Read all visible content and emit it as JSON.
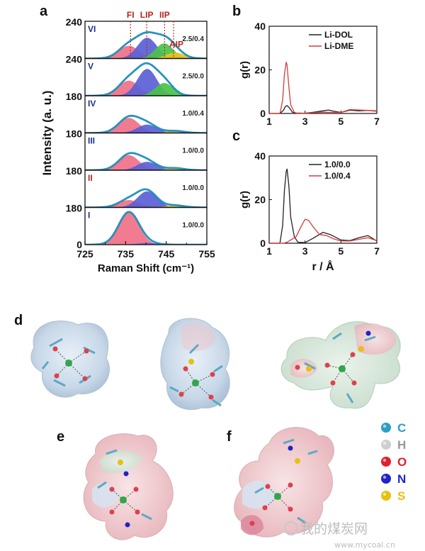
{
  "panel_labels": [
    "a",
    "b",
    "c",
    "d",
    "e",
    "f"
  ],
  "chart_data": [
    {
      "panel": "a",
      "type": "area",
      "xlabel": "Raman Shift (cm⁻¹)",
      "ylabel": "Intensity (a. u.)",
      "xlim": [
        725,
        755
      ],
      "xticks": [
        "725",
        "735",
        "745",
        "755"
      ],
      "x_tick_values": [
        725,
        735,
        745,
        755
      ],
      "x_minor_ticks": [
        730,
        740,
        750
      ],
      "peak_labels": [
        {
          "text": "FI",
          "x": 736.2
        },
        {
          "text": "LIP",
          "x": 740.2
        },
        {
          "text": "IIP",
          "x": 744.6
        },
        {
          "text": "AIP",
          "x": 746.8
        }
      ],
      "peak_label_color": "#b3261e",
      "components": {
        "FI": {
          "color": "#f07088",
          "sigma": 2.5,
          "x": 735.8
        },
        "LIP": {
          "color": "#5a5fd6",
          "sigma": 2.4,
          "x": 740.3
        },
        "IIP": {
          "color": "#49c24a",
          "sigma": 2.2,
          "x": 744.5
        },
        "AIP": {
          "color": "#e8c21c",
          "sigma": 2.2,
          "x": 747.2
        }
      },
      "envelope_color": "#1f9fcf",
      "subpanels": [
        {
          "roman": "VI",
          "roman_color": "#1a2f8f",
          "ratio": "2.5/0.4",
          "ytick": "240",
          "heights": {
            "FI": 0.38,
            "LIP": 0.62,
            "IIP": 0.45,
            "AIP": 0.18
          }
        },
        {
          "roman": "V",
          "roman_color": "#1a2f8f",
          "ratio": "2.5/0.0",
          "ytick": "240",
          "heights": {
            "FI": 0.45,
            "LIP": 0.8,
            "IIP": 0.38,
            "AIP": 0.0
          }
        },
        {
          "roman": "IV",
          "roman_color": "#1a2f8f",
          "ratio": "1.0/0.4",
          "ytick": "180",
          "heights": {
            "FI": 0.45,
            "LIP": 0.25,
            "IIP": 0.0,
            "AIP": 0.06
          }
        },
        {
          "roman": "III",
          "roman_color": "#1a2f8f",
          "ratio": "1.0/0.0",
          "ytick": "180",
          "heights": {
            "FI": 0.45,
            "LIP": 0.25,
            "IIP": 0.0,
            "AIP": 0.06
          }
        },
        {
          "roman": "II",
          "roman_color": "#b3261e",
          "ratio": "1.0/0.0",
          "ytick": "180",
          "heights": {
            "FI": 0.22,
            "LIP": 0.48,
            "IIP": 0.0,
            "AIP": 0.06
          }
        },
        {
          "roman": "I",
          "roman_color": "#1a2f8f",
          "ratio": "1.0/0.0",
          "ytick": "180",
          "heights": {
            "FI": 0.95,
            "LIP": 0.05,
            "IIP": 0.0,
            "AIP": 0.0
          }
        }
      ],
      "bottom_ytick": "0"
    },
    {
      "panel": "b",
      "type": "line",
      "xlabel": "",
      "ylabel": "g(r)",
      "xlim": [
        1,
        7
      ],
      "ylim": [
        0,
        40
      ],
      "xticks": [
        1,
        3,
        5,
        7
      ],
      "yticks": [
        0,
        20,
        40
      ],
      "legend_position": "top-right",
      "series": [
        {
          "name": "Li-DOL",
          "color": "#222222",
          "x": [
            1,
            1.6,
            1.8,
            1.9,
            2.0,
            2.1,
            2.3,
            2.5,
            3.0,
            3.5,
            4.0,
            4.3,
            4.6,
            5.0,
            5.5,
            6.0,
            6.5,
            7.0
          ],
          "y": [
            0,
            0,
            1.5,
            3.2,
            3.6,
            2.8,
            0.6,
            0.2,
            0.1,
            0.6,
            1.2,
            1.6,
            1.0,
            0.5,
            1.5,
            1.2,
            1.4,
            1.0
          ]
        },
        {
          "name": "Li-DME",
          "color": "#d83a3a",
          "x": [
            1,
            1.6,
            1.75,
            1.85,
            1.95,
            2.0,
            2.1,
            2.2,
            2.4,
            2.6,
            3.0,
            3.5,
            4.0,
            4.5,
            5.0,
            5.5,
            6.0,
            6.5,
            7.0
          ],
          "y": [
            0,
            0,
            6,
            18,
            23.5,
            22,
            12,
            4,
            0.5,
            0,
            0.1,
            0.4,
            0.6,
            0.5,
            0.5,
            1.8,
            1.6,
            1.4,
            1.2
          ]
        }
      ]
    },
    {
      "panel": "c",
      "type": "line",
      "xlabel": "r / Å",
      "ylabel": "g(r)",
      "xlim": [
        1,
        7
      ],
      "ylim": [
        0,
        40
      ],
      "xticks": [
        1,
        3,
        5,
        7
      ],
      "yticks": [
        0,
        20,
        40
      ],
      "legend_position": "top-right",
      "series": [
        {
          "name": "1.0/0.0",
          "color": "#222222",
          "x": [
            1,
            1.6,
            1.75,
            1.85,
            1.95,
            2.0,
            2.1,
            2.2,
            2.4,
            2.6,
            3.0,
            3.5,
            4.0,
            4.4,
            5.0,
            5.5,
            6.0,
            6.5,
            7.0
          ],
          "y": [
            0,
            0,
            8,
            24,
            33,
            34,
            26,
            12,
            3,
            0.5,
            0.3,
            2.5,
            5.0,
            4.0,
            1.5,
            1.2,
            2.5,
            3.5,
            1.0
          ]
        },
        {
          "name": "1.0/0.4",
          "color": "#d83a3a",
          "x": [
            1,
            1.8,
            2.0,
            2.2,
            2.5,
            2.8,
            3.0,
            3.2,
            3.5,
            3.8,
            4.2,
            4.6,
            5.0,
            5.5,
            6.0,
            6.5,
            7.0
          ],
          "y": [
            0,
            0,
            0.5,
            1.5,
            3.0,
            8.0,
            11.0,
            10.5,
            7.0,
            4.0,
            3.5,
            2.0,
            1.0,
            1.0,
            1.8,
            2.5,
            1.2
          ]
        }
      ]
    }
  ],
  "molecule_legend": [
    {
      "symbol": "C",
      "color": "#2a9fc4",
      "text_color": "#2a9fc4"
    },
    {
      "symbol": "H",
      "color": "#cfcfcf",
      "text_color": "#9a9a9a"
    },
    {
      "symbol": "O",
      "color": "#e02030",
      "text_color": "#e02030"
    },
    {
      "symbol": "N",
      "color": "#2222c8",
      "text_color": "#2222c8"
    },
    {
      "symbol": "S",
      "color": "#e8c010",
      "text_color": "#e8c010"
    }
  ],
  "watermark": {
    "text": "我的煤炭网",
    "url": "www.mycoal.cn"
  }
}
